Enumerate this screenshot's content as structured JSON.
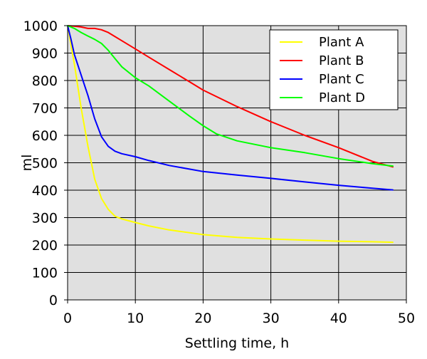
{
  "chart_data": {
    "type": "line",
    "title": "",
    "xlabel": "Settling time, h",
    "ylabel": "ml",
    "xlim": [
      0,
      50
    ],
    "ylim": [
      0,
      1000
    ],
    "xticks": [
      "0",
      "10",
      "20",
      "30",
      "40",
      "50"
    ],
    "yticks": [
      "0",
      "100",
      "200",
      "300",
      "400",
      "500",
      "600",
      "700",
      "800",
      "900",
      "1000"
    ],
    "grid": true,
    "background": "#e0e0e0",
    "legend_position": "top-right",
    "series": [
      {
        "name": "Plant A",
        "color": "#ffff00",
        "x": [
          0,
          1,
          2,
          3,
          4,
          5,
          6,
          7,
          8,
          10,
          12,
          15,
          20,
          25,
          30,
          35,
          40,
          45,
          48
        ],
        "y": [
          1000,
          860,
          700,
          560,
          440,
          370,
          330,
          305,
          295,
          282,
          270,
          255,
          238,
          228,
          222,
          218,
          214,
          212,
          210
        ]
      },
      {
        "name": "Plant B",
        "color": "#ff0000",
        "x": [
          0,
          1,
          2,
          3,
          4,
          5,
          6,
          7,
          8,
          10,
          12,
          15,
          18,
          20,
          25,
          30,
          35,
          40,
          45,
          48
        ],
        "y": [
          1000,
          998,
          995,
          990,
          990,
          985,
          975,
          960,
          945,
          915,
          885,
          840,
          795,
          765,
          705,
          650,
          600,
          555,
          505,
          485
        ]
      },
      {
        "name": "Plant C",
        "color": "#0000ff",
        "x": [
          0,
          0.5,
          1,
          2,
          3,
          4,
          5,
          6,
          7,
          8,
          10,
          12,
          15,
          20,
          25,
          30,
          35,
          40,
          45,
          48
        ],
        "y": [
          1000,
          950,
          895,
          820,
          745,
          660,
          595,
          560,
          542,
          533,
          522,
          508,
          490,
          468,
          455,
          443,
          430,
          418,
          407,
          401
        ]
      },
      {
        "name": "Plant D",
        "color": "#00ff00",
        "x": [
          0,
          1,
          2,
          3,
          4,
          5,
          6,
          7,
          8,
          10,
          12,
          15,
          18,
          20,
          22,
          25,
          30,
          35,
          40,
          45,
          48
        ],
        "y": [
          1000,
          990,
          975,
          962,
          950,
          935,
          910,
          880,
          850,
          810,
          780,
          725,
          670,
          635,
          605,
          580,
          555,
          537,
          515,
          497,
          488
        ]
      }
    ]
  }
}
